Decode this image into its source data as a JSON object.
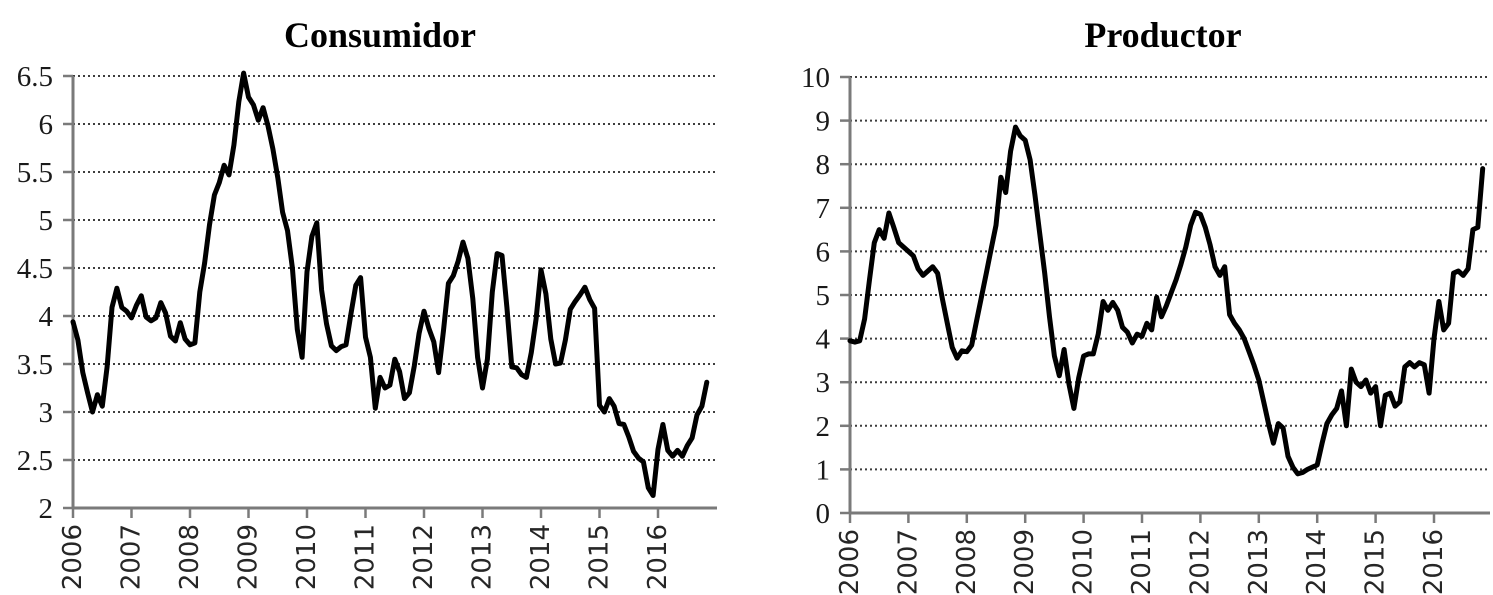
{
  "figure": {
    "background": "#ffffff",
    "series_color": "#000000",
    "gridline_style": "dotted",
    "gridline_color": "#3d3d3d",
    "axis_color": "#7a7a7a"
  },
  "chart_data": [
    {
      "type": "line",
      "title": "Consumidor",
      "frequency": "monthly",
      "x_start_year": 2006,
      "x_start_month": 1,
      "x_tick_labels": [
        "2006",
        "2007",
        "2008",
        "2009",
        "2010",
        "2011",
        "2012",
        "2013",
        "2014",
        "2015",
        "2016"
      ],
      "ylim": [
        2,
        6.5
      ],
      "y_step": 0.5,
      "y_tick_labels": [
        "6.5",
        "6",
        "5.5",
        "5",
        "4.5",
        "4",
        "3.5",
        "3",
        "2.5",
        "2"
      ],
      "grid": "horizontal-dotted",
      "legend": "none",
      "series": [
        {
          "name": "Consumidor",
          "color": "#000000",
          "values": [
            3.94,
            3.75,
            3.41,
            3.2,
            3.0,
            3.18,
            3.06,
            3.47,
            4.09,
            4.29,
            4.09,
            4.05,
            3.98,
            4.11,
            4.21,
            3.99,
            3.95,
            3.98,
            4.14,
            4.03,
            3.79,
            3.74,
            3.93,
            3.76,
            3.7,
            3.72,
            4.25,
            4.55,
            4.95,
            5.26,
            5.39,
            5.57,
            5.47,
            5.78,
            6.23,
            6.53,
            6.28,
            6.2,
            6.04,
            6.17,
            5.98,
            5.74,
            5.44,
            5.08,
            4.89,
            4.5,
            3.86,
            3.57,
            4.46,
            4.83,
            4.97,
            4.27,
            3.92,
            3.69,
            3.64,
            3.68,
            3.7,
            4.02,
            4.32,
            4.4,
            3.78,
            3.57,
            3.04,
            3.36,
            3.25,
            3.28,
            3.55,
            3.42,
            3.14,
            3.2,
            3.48,
            3.82,
            4.05,
            3.87,
            3.73,
            3.41,
            3.85,
            4.34,
            4.42,
            4.57,
            4.77,
            4.6,
            4.18,
            3.57,
            3.25,
            3.55,
            4.25,
            4.65,
            4.63,
            4.09,
            3.47,
            3.46,
            3.39,
            3.36,
            3.62,
            3.97,
            4.48,
            4.23,
            3.76,
            3.5,
            3.51,
            3.75,
            4.07,
            4.15,
            4.22,
            4.3,
            4.17,
            4.08,
            3.07,
            3.0,
            3.14,
            3.06,
            2.88,
            2.87,
            2.74,
            2.59,
            2.52,
            2.48,
            2.21,
            2.13,
            2.61,
            2.87,
            2.6,
            2.54,
            2.6,
            2.54,
            2.65,
            2.73,
            2.97,
            3.06,
            3.31
          ]
        }
      ]
    },
    {
      "type": "line",
      "title": "Productor",
      "frequency": "monthly",
      "x_start_year": 2006,
      "x_start_month": 1,
      "x_tick_labels": [
        "2006",
        "2007",
        "2008",
        "2009",
        "2010",
        "2011",
        "2012",
        "2013",
        "2014",
        "2015",
        "2016"
      ],
      "ylim": [
        0,
        10
      ],
      "y_step": 1,
      "y_tick_labels": [
        "10",
        "9",
        "8",
        "7",
        "6",
        "5",
        "4",
        "3",
        "2",
        "1",
        "0"
      ],
      "grid": "horizontal-dotted",
      "legend": "none",
      "series": [
        {
          "name": "Productor",
          "color": "#000000",
          "values": [
            3.95,
            3.92,
            3.95,
            4.45,
            5.35,
            6.2,
            6.5,
            6.3,
            6.88,
            6.55,
            6.2,
            6.1,
            6.0,
            5.9,
            5.6,
            5.45,
            5.55,
            5.65,
            5.5,
            4.9,
            4.35,
            3.8,
            3.55,
            3.72,
            3.7,
            3.85,
            4.4,
            4.95,
            5.5,
            6.05,
            6.6,
            7.7,
            7.35,
            8.3,
            8.85,
            8.65,
            8.55,
            8.1,
            7.3,
            6.4,
            5.5,
            4.5,
            3.6,
            3.15,
            3.75,
            2.95,
            2.4,
            3.1,
            3.6,
            3.65,
            3.65,
            4.1,
            4.85,
            4.65,
            4.83,
            4.65,
            4.26,
            4.15,
            3.9,
            4.1,
            4.05,
            4.35,
            4.2,
            4.95,
            4.5,
            4.75,
            5.05,
            5.35,
            5.7,
            6.1,
            6.6,
            6.9,
            6.85,
            6.55,
            6.15,
            5.65,
            5.45,
            5.65,
            4.55,
            4.35,
            4.2,
            4.0,
            3.7,
            3.4,
            3.05,
            2.55,
            2.05,
            1.6,
            2.05,
            1.95,
            1.3,
            1.05,
            0.9,
            0.93,
            1.0,
            1.05,
            1.1,
            1.6,
            2.05,
            2.25,
            2.4,
            2.8,
            2.0,
            3.3,
            3.0,
            2.9,
            3.05,
            2.75,
            2.9,
            2.0,
            2.7,
            2.75,
            2.45,
            2.55,
            3.35,
            3.45,
            3.35,
            3.45,
            3.4,
            2.75,
            4.0,
            4.85,
            4.2,
            4.35,
            5.5,
            5.55,
            5.45,
            5.6,
            6.5,
            6.55,
            7.9
          ]
        }
      ]
    }
  ]
}
